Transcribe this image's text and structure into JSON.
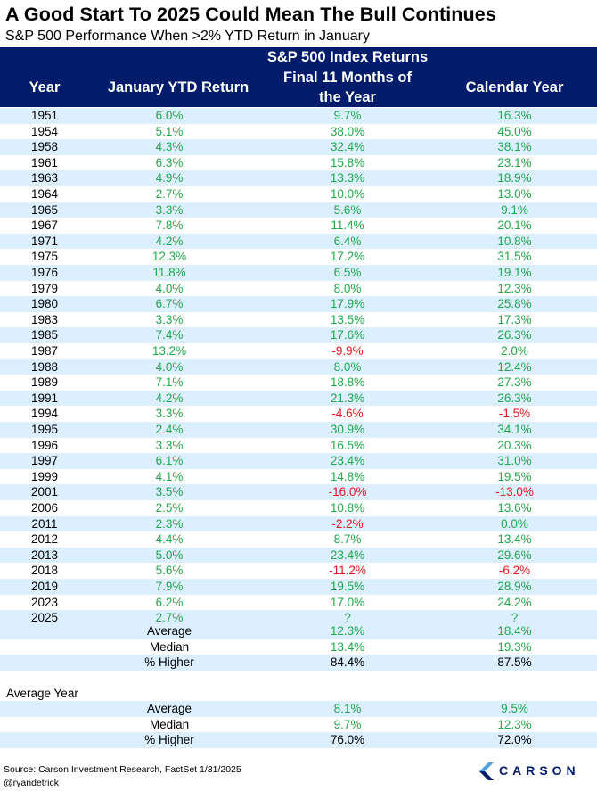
{
  "title": "A Good Start To 2025 Could Mean The Bull Continues",
  "subtitle": "S&P 500 Performance When >2% YTD Return in January",
  "header": {
    "col_year": "Year",
    "col_january": "January YTD Return",
    "group_label": "S&P 500 Index Returns",
    "col_final_line1": "Final 11 Months of",
    "col_final_line2": "the Year",
    "col_calendar": "Calendar Year"
  },
  "colors": {
    "header_bg": "#001c6b",
    "shade": "#dcefff",
    "positive": "#1fa84a",
    "negative": "#e8151b"
  },
  "chart_data": {
    "type": "table",
    "title": "A Good Start To 2025 Could Mean The Bull Continues",
    "columns": [
      "Year",
      "January YTD Return",
      "Final 11 Months of the Year",
      "Calendar Year"
    ],
    "rows": [
      [
        "1951",
        "6.0%",
        "9.7%",
        "16.3%"
      ],
      [
        "1954",
        "5.1%",
        "38.0%",
        "45.0%"
      ],
      [
        "1958",
        "4.3%",
        "32.4%",
        "38.1%"
      ],
      [
        "1961",
        "6.3%",
        "15.8%",
        "23.1%"
      ],
      [
        "1963",
        "4.9%",
        "13.3%",
        "18.9%"
      ],
      [
        "1964",
        "2.7%",
        "10.0%",
        "13.0%"
      ],
      [
        "1965",
        "3.3%",
        "5.6%",
        "9.1%"
      ],
      [
        "1967",
        "7.8%",
        "11.4%",
        "20.1%"
      ],
      [
        "1971",
        "4.2%",
        "6.4%",
        "10.8%"
      ],
      [
        "1975",
        "12.3%",
        "17.2%",
        "31.5%"
      ],
      [
        "1976",
        "11.8%",
        "6.5%",
        "19.1%"
      ],
      [
        "1979",
        "4.0%",
        "8.0%",
        "12.3%"
      ],
      [
        "1980",
        "6.7%",
        "17.9%",
        "25.8%"
      ],
      [
        "1983",
        "3.3%",
        "13.5%",
        "17.3%"
      ],
      [
        "1985",
        "7.4%",
        "17.6%",
        "26.3%"
      ],
      [
        "1987",
        "13.2%",
        "-9.9%",
        "2.0%"
      ],
      [
        "1988",
        "4.0%",
        "8.0%",
        "12.4%"
      ],
      [
        "1989",
        "7.1%",
        "18.8%",
        "27.3%"
      ],
      [
        "1991",
        "4.2%",
        "21.3%",
        "26.3%"
      ],
      [
        "1994",
        "3.3%",
        "-4.6%",
        "-1.5%"
      ],
      [
        "1995",
        "2.4%",
        "30.9%",
        "34.1%"
      ],
      [
        "1996",
        "3.3%",
        "16.5%",
        "20.3%"
      ],
      [
        "1997",
        "6.1%",
        "23.4%",
        "31.0%"
      ],
      [
        "1999",
        "4.1%",
        "14.8%",
        "19.5%"
      ],
      [
        "2001",
        "3.5%",
        "-16.0%",
        "-13.0%"
      ],
      [
        "2006",
        "2.5%",
        "10.8%",
        "13.6%"
      ],
      [
        "2011",
        "2.3%",
        "-2.2%",
        "0.0%"
      ],
      [
        "2012",
        "4.4%",
        "8.7%",
        "13.4%"
      ],
      [
        "2013",
        "5.0%",
        "23.4%",
        "29.6%"
      ],
      [
        "2018",
        "5.6%",
        "-11.2%",
        "-6.2%"
      ],
      [
        "2019",
        "7.9%",
        "19.5%",
        "28.9%"
      ],
      [
        "2023",
        "6.2%",
        "17.0%",
        "24.2%"
      ],
      [
        "2025",
        "2.7%",
        "?",
        "?"
      ]
    ],
    "summary": [
      [
        "Average",
        "12.3%",
        "18.4%"
      ],
      [
        "Median",
        "13.4%",
        "19.3%"
      ],
      [
        "% Higher",
        "84.4%",
        "87.5%"
      ]
    ],
    "average_year_label": "Average Year",
    "average_year": [
      [
        "Average",
        "8.1%",
        "9.5%"
      ],
      [
        "Median",
        "9.7%",
        "12.3%"
      ],
      [
        "% Higher",
        "76.0%",
        "72.0%"
      ]
    ]
  },
  "footer": {
    "source": "Source: Carson Investment Research, FactSet 1/31/2025",
    "handle": "@ryandetrick",
    "brand": "CARSON"
  }
}
